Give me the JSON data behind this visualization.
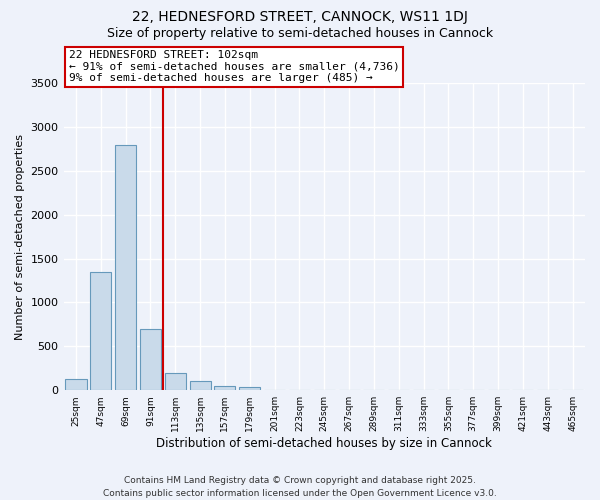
{
  "title_line1": "22, HEDNESFORD STREET, CANNOCK, WS11 1DJ",
  "title_line2": "Size of property relative to semi-detached houses in Cannock",
  "xlabel": "Distribution of semi-detached houses by size in Cannock",
  "ylabel": "Number of semi-detached properties",
  "bar_color": "#c9daea",
  "bar_edge_color": "#6699bb",
  "categories": [
    "25sqm",
    "47sqm",
    "69sqm",
    "91sqm",
    "113sqm",
    "135sqm",
    "157sqm",
    "179sqm",
    "201sqm",
    "223sqm",
    "245sqm",
    "267sqm",
    "289sqm",
    "311sqm",
    "333sqm",
    "355sqm",
    "377sqm",
    "399sqm",
    "421sqm",
    "443sqm",
    "465sqm"
  ],
  "values": [
    130,
    1350,
    2800,
    700,
    200,
    110,
    50,
    40,
    5,
    0,
    0,
    0,
    0,
    0,
    0,
    0,
    0,
    0,
    0,
    0,
    0
  ],
  "ylim": [
    0,
    3500
  ],
  "yticks": [
    0,
    500,
    1000,
    1500,
    2000,
    2500,
    3000,
    3500
  ],
  "property_line_x": 3.5,
  "annotation_line1": "22 HEDNESFORD STREET: 102sqm",
  "annotation_line2": "← 91% of semi-detached houses are smaller (4,736)",
  "annotation_line3": "9% of semi-detached houses are larger (485) →",
  "annotation_box_color": "#ffffff",
  "annotation_box_edge": "#cc0000",
  "vline_color": "#cc0000",
  "footer_line1": "Contains HM Land Registry data © Crown copyright and database right 2025.",
  "footer_line2": "Contains public sector information licensed under the Open Government Licence v3.0.",
  "background_color": "#eef2fa",
  "grid_color": "#ffffff",
  "title_fontsize": 10,
  "subtitle_fontsize": 9,
  "annotation_fontsize": 8,
  "footer_fontsize": 6.5,
  "ylabel_fontsize": 8,
  "xlabel_fontsize": 8.5
}
